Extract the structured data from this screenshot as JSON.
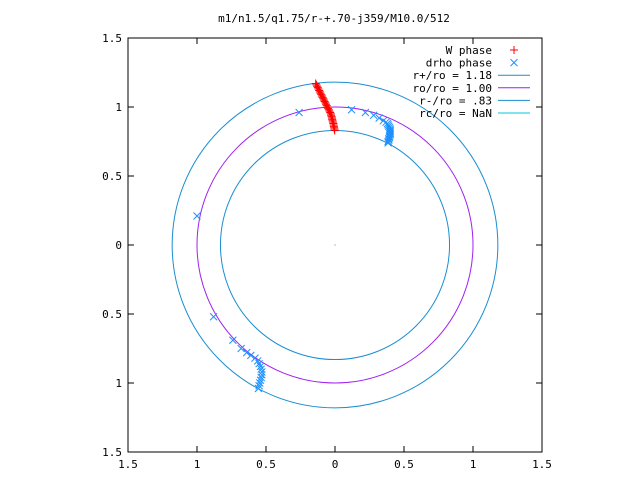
{
  "chart_data": {
    "type": "scatter",
    "title": "m1/n1.5/q1.75/r-+.70-j359/M10.0/512",
    "xlabel": "",
    "ylabel": "",
    "xlim": [
      -1.5,
      1.5
    ],
    "ylim": [
      -1.5,
      1.5
    ],
    "grid": false,
    "legend_position": "top-right",
    "x_ticks": [
      -1.5,
      -1,
      -0.5,
      0,
      0.5,
      1,
      1.5
    ],
    "x_tick_labels": [
      "1.5",
      "1",
      "0.5",
      "0",
      "0.5",
      "1",
      "1.5"
    ],
    "y_ticks": [
      -1.5,
      -1,
      -0.5,
      0,
      0.5,
      1,
      1.5
    ],
    "y_tick_labels": [
      "1.5",
      "1",
      "0.5",
      "0",
      "0.5",
      "1",
      "1.5"
    ],
    "circles": [
      {
        "name": "r+/ro = 1.18",
        "radius": 1.18,
        "color": "#1a8ed0"
      },
      {
        "name": "ro/ro = 1.00",
        "radius": 1.0,
        "color": "#a020f0"
      },
      {
        "name": "r-/ro = .83",
        "radius": 0.83,
        "color": "#1a8ed0"
      },
      {
        "name": "rc/ro = NaN",
        "radius": null,
        "color": "#00c8d8"
      }
    ],
    "series": [
      {
        "name": "W phase",
        "marker": "+",
        "color": "#ff0000",
        "points": [
          [
            -0.14,
            1.17
          ],
          [
            -0.135,
            1.16
          ],
          [
            -0.13,
            1.15
          ],
          [
            -0.125,
            1.14
          ],
          [
            -0.12,
            1.13
          ],
          [
            -0.115,
            1.12
          ],
          [
            -0.11,
            1.11
          ],
          [
            -0.105,
            1.1
          ],
          [
            -0.1,
            1.09
          ],
          [
            -0.095,
            1.08
          ],
          [
            -0.09,
            1.07
          ],
          [
            -0.085,
            1.06
          ],
          [
            -0.08,
            1.05
          ],
          [
            -0.075,
            1.04
          ],
          [
            -0.07,
            1.03
          ],
          [
            -0.065,
            1.02
          ],
          [
            -0.06,
            1.01
          ],
          [
            -0.055,
            1.0
          ],
          [
            -0.05,
            0.99
          ],
          [
            -0.045,
            0.98
          ],
          [
            -0.04,
            0.97
          ],
          [
            -0.035,
            0.96
          ],
          [
            -0.03,
            0.95
          ],
          [
            -0.028,
            0.94
          ],
          [
            -0.025,
            0.93
          ],
          [
            -0.022,
            0.92
          ],
          [
            -0.02,
            0.91
          ],
          [
            -0.018,
            0.9
          ],
          [
            -0.015,
            0.89
          ],
          [
            -0.012,
            0.88
          ],
          [
            -0.01,
            0.87
          ],
          [
            -0.008,
            0.86
          ],
          [
            -0.006,
            0.85
          ],
          [
            -0.004,
            0.84
          ],
          [
            -0.002,
            0.83
          ]
        ]
      },
      {
        "name": "drho phase",
        "marker": "x",
        "color": "#1e90ff",
        "points": [
          [
            -0.26,
            0.96
          ],
          [
            0.12,
            0.98
          ],
          [
            0.22,
            0.96
          ],
          [
            0.28,
            0.94
          ],
          [
            0.32,
            0.92
          ],
          [
            0.35,
            0.9
          ],
          [
            0.37,
            0.89
          ],
          [
            0.38,
            0.88
          ],
          [
            0.385,
            0.87
          ],
          [
            0.39,
            0.86
          ],
          [
            0.395,
            0.85
          ],
          [
            0.4,
            0.84
          ],
          [
            0.4,
            0.83
          ],
          [
            0.4,
            0.82
          ],
          [
            0.4,
            0.81
          ],
          [
            0.4,
            0.8
          ],
          [
            0.395,
            0.79
          ],
          [
            0.395,
            0.78
          ],
          [
            0.39,
            0.77
          ],
          [
            0.39,
            0.76
          ],
          [
            0.385,
            0.75
          ],
          [
            0.385,
            0.74
          ],
          [
            -1.0,
            0.21
          ],
          [
            -0.88,
            -0.52
          ],
          [
            -0.74,
            -0.69
          ],
          [
            -0.68,
            -0.75
          ],
          [
            -0.64,
            -0.78
          ],
          [
            -0.61,
            -0.8
          ],
          [
            -0.58,
            -0.82
          ],
          [
            -0.56,
            -0.84
          ],
          [
            -0.55,
            -0.86
          ],
          [
            -0.54,
            -0.88
          ],
          [
            -0.535,
            -0.9
          ],
          [
            -0.53,
            -0.92
          ],
          [
            -0.53,
            -0.94
          ],
          [
            -0.535,
            -0.96
          ],
          [
            -0.54,
            -0.98
          ],
          [
            -0.545,
            -1.0
          ],
          [
            -0.55,
            -1.02
          ],
          [
            -0.555,
            -1.04
          ]
        ]
      }
    ]
  }
}
